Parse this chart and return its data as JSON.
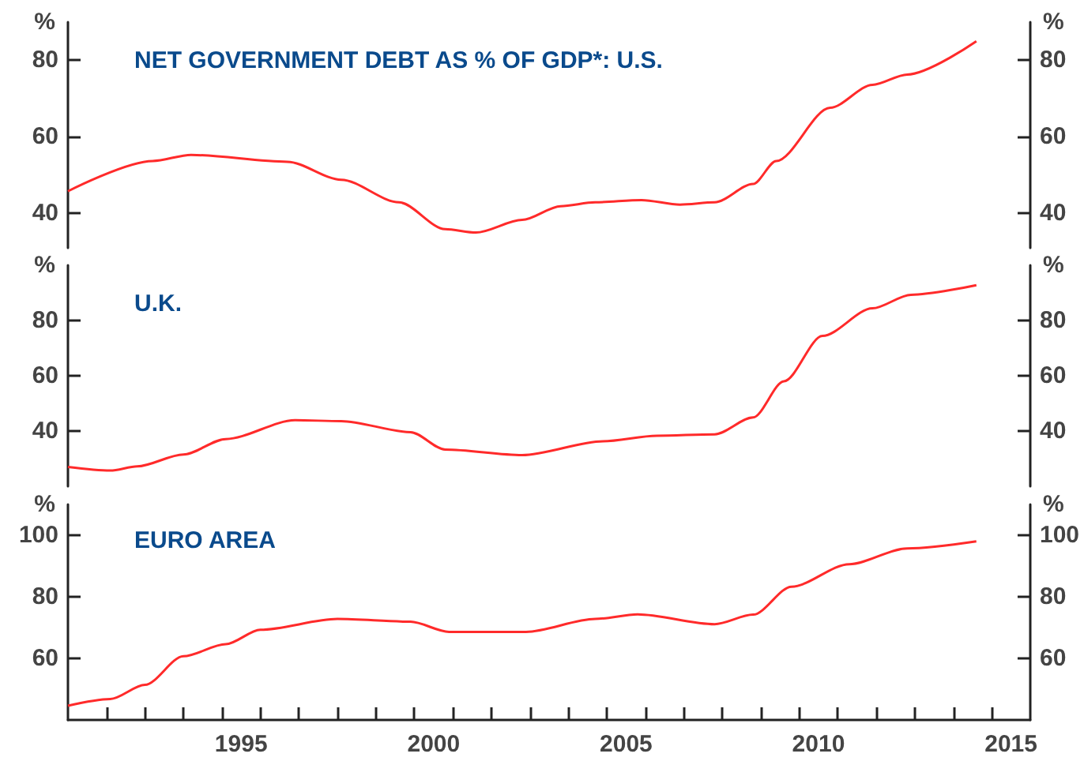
{
  "chart_data": [
    {
      "type": "line",
      "title": "NET GOVERNMENT DEBT AS % OF GDP*: U.S.",
      "ylabel": "%",
      "y2label": "%",
      "color": "#ff2a2a",
      "tick_labels": "y",
      "x": [
        1991.0,
        1993.2,
        1994.2,
        1996.7,
        1998.1,
        1999.6,
        2000.8,
        2001.6,
        2002.8,
        2003.8,
        2004.7,
        2005.9,
        2006.9,
        2007.8,
        2008.8,
        2009.4,
        2010.8,
        2011.9,
        2012.8,
        2014.6
      ],
      "values": [
        45.8,
        53.7,
        55.3,
        53.5,
        48.8,
        42.9,
        35.9,
        35,
        38.3,
        41.9,
        42.9,
        43.5,
        42.3,
        42.9,
        47.7,
        53.7,
        67.6,
        73.6,
        76.3,
        85
      ],
      "xlim": [
        1991,
        2016
      ],
      "ylim": [
        31,
        90
      ],
      "yticks": [
        40,
        60,
        80
      ],
      "y2lim": [
        31,
        90
      ],
      "y2ticks": [
        40,
        60,
        80
      ]
    },
    {
      "type": "line",
      "title": "U.K.",
      "ylabel": "%",
      "y2label": "%",
      "color": "#ff2a2a",
      "tick_labels": "y",
      "x": [
        1991.0,
        1992.1,
        1992.8,
        1994.0,
        1995.1,
        1996.9,
        1998.1,
        1999.9,
        2000.8,
        2002.8,
        2004.9,
        2006.3,
        2007.8,
        2008.8,
        2009.6,
        2010.6,
        2011.9,
        2012.9,
        2014.6
      ],
      "values": [
        27,
        25.7,
        27.2,
        31.5,
        37.1,
        43.9,
        43.6,
        39.6,
        33.3,
        31.3,
        36.3,
        38.3,
        38.8,
        44.9,
        58,
        74.4,
        84.4,
        89.3,
        92.8
      ],
      "xlim": [
        1991,
        2016
      ],
      "ylim": [
        20,
        100
      ],
      "yticks": [
        40,
        60,
        80
      ],
      "y2lim": [
        20,
        100
      ],
      "y2ticks": [
        40,
        60,
        80
      ]
    },
    {
      "type": "line",
      "title": "EURO AREA",
      "ylabel": "%",
      "y2label": "%",
      "color": "#ff2a2a",
      "x": [
        1991.0,
        1992.1,
        1993.0,
        1994.0,
        1995.1,
        1996.0,
        1998.0,
        1999.9,
        2000.9,
        2002.9,
        2004.7,
        2005.8,
        2007.8,
        2008.8,
        2009.8,
        2011.3,
        2012.8,
        2014.6
      ],
      "values": [
        44.6,
        46.8,
        51.4,
        60.7,
        64.6,
        69.3,
        72.8,
        71.9,
        68.6,
        68.6,
        72.8,
        74.3,
        71.1,
        74.2,
        83.3,
        90.6,
        95.7,
        98
      ],
      "xlim": [
        1991,
        2016
      ],
      "xticks": [
        {
          "value": 1992,
          "label": null
        },
        {
          "value": 1993,
          "label": null
        },
        {
          "value": 1994,
          "label": null
        },
        {
          "value": 1995,
          "label": null
        },
        {
          "value": 1996,
          "label": null
        },
        {
          "value": 1997,
          "label": null
        },
        {
          "value": 1998,
          "label": null
        },
        {
          "value": 1999,
          "label": null
        },
        {
          "value": 2000,
          "label": null
        },
        {
          "value": 2001,
          "label": null
        },
        {
          "value": 2002,
          "label": null
        },
        {
          "value": 2003,
          "label": null
        },
        {
          "value": 2004,
          "label": null
        },
        {
          "value": 2005,
          "label": null
        },
        {
          "value": 2006,
          "label": null
        },
        {
          "value": 2007,
          "label": null
        },
        {
          "value": 2008,
          "label": null
        },
        {
          "value": 2009,
          "label": null
        },
        {
          "value": 2010,
          "label": null
        },
        {
          "value": 2011,
          "label": null
        },
        {
          "value": 2012,
          "label": null
        },
        {
          "value": 2013,
          "label": null
        },
        {
          "value": 2014,
          "label": null
        },
        {
          "value": 2015,
          "label": null
        },
        {
          "value": 1995.5,
          "label": "1995"
        },
        {
          "value": 2000.5,
          "label": "2000"
        },
        {
          "value": 2005.5,
          "label": "2005"
        },
        {
          "value": 2010.5,
          "label": "2010"
        },
        {
          "value": 2015.5,
          "label": "2015"
        }
      ],
      "ylim": [
        40,
        110
      ],
      "yticks": [
        60,
        80,
        100
      ],
      "y2lim": [
        40,
        110
      ],
      "y2ticks": [
        60,
        80,
        100
      ]
    }
  ]
}
